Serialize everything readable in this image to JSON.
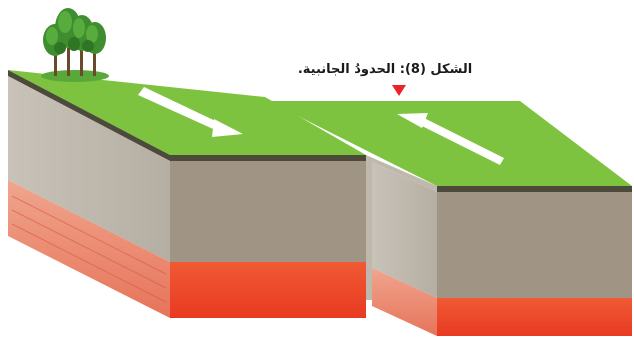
{
  "figure": {
    "caption": "الشكل (8): الحدودُ الجانبية."
  },
  "colors": {
    "grass": "#7ec33f",
    "grass_edge": "#4c4a3a",
    "crust_front": "#a09584",
    "crust_side": "#bfb8ad",
    "mantle_front": "#f04a2c",
    "mantle_side": "#ea8b73",
    "arrow": "#ffffff",
    "marker": "#e8242a",
    "tree": "#3e8e2f"
  },
  "icons": {
    "trees": "tree-cluster-icon",
    "marker": "triangle-down-icon",
    "arrows": "direction-arrow-icon"
  }
}
